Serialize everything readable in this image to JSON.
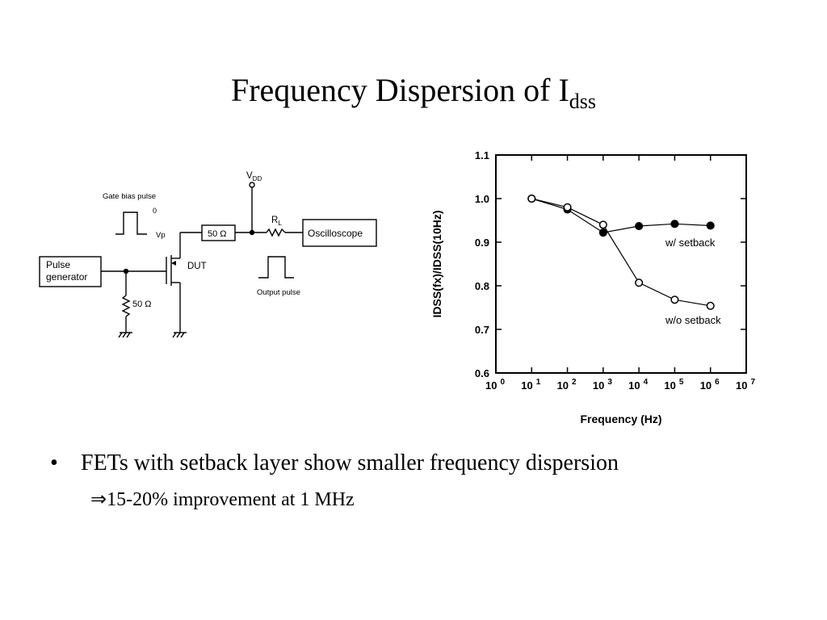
{
  "slide": {
    "title_main": "Frequency Dispersion of I",
    "title_sub": "dss",
    "bullet_marker": "•",
    "bullet_text": "FETs with setback layer show smaller frequency dispersion",
    "sub_bullet_arrow": "⇒",
    "sub_bullet_text": "15-20% improvement at 1 MHz"
  },
  "circuit": {
    "gate_bias_label": "Gate bias pulse",
    "zero_label": "0",
    "vp_label": "Vp",
    "pulse_gen_line1": "Pulse",
    "pulse_gen_line2": "generator",
    "r_series_label": "50 Ω",
    "r_shunt_label": "50 Ω",
    "vdd_main": "V",
    "vdd_sub": "DD",
    "rl_main": "R",
    "rl_sub": "L",
    "scope_label": "Oscilloscope",
    "dut_label": "DUT",
    "output_pulse_label": "Output pulse"
  },
  "chart_data": {
    "type": "line",
    "ylabel": "IDSS(fx)/IDSS(10Hz)",
    "xlabel": "Frequency (Hz)",
    "xscale": "log",
    "xlim": [
      1,
      10000000
    ],
    "ylim": [
      0.6,
      1.1
    ],
    "yticks": [
      "0.6",
      "0.7",
      "0.8",
      "0.9",
      "1.0",
      "1.1"
    ],
    "xticks": [
      {
        "base": "10",
        "exp": "0"
      },
      {
        "base": "10",
        "exp": "1"
      },
      {
        "base": "10",
        "exp": "2"
      },
      {
        "base": "10",
        "exp": "3"
      },
      {
        "base": "10",
        "exp": "4"
      },
      {
        "base": "10",
        "exp": "5"
      },
      {
        "base": "10",
        "exp": "6"
      },
      {
        "base": "10",
        "exp": "7"
      }
    ],
    "grid": false,
    "series": [
      {
        "name": "w/ setback",
        "marker": "filled-circle",
        "x": [
          10,
          100,
          1000,
          10000,
          100000,
          1000000
        ],
        "y": [
          1.0,
          0.975,
          0.922,
          0.937,
          0.942,
          0.938
        ]
      },
      {
        "name": "w/o setback",
        "marker": "open-circle",
        "x": [
          10,
          100,
          1000,
          10000,
          100000,
          1000000
        ],
        "y": [
          1.0,
          0.98,
          0.94,
          0.807,
          0.768,
          0.754
        ]
      }
    ]
  }
}
